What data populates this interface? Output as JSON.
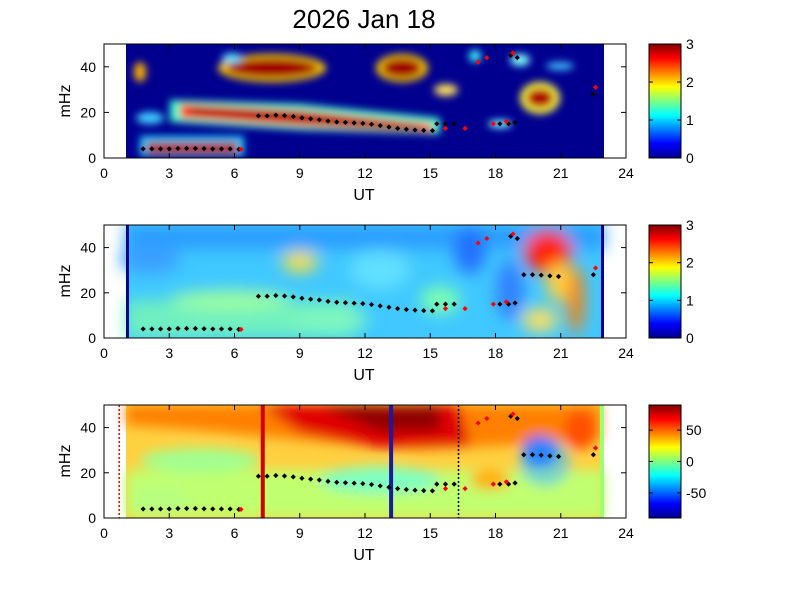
{
  "title": "2026 Jan 18",
  "colors": {
    "background_panel1": "#00008f",
    "marker_black": "#000000",
    "marker_red": "#ff0000",
    "line_red": "#d40000",
    "line_blue": "#1a1aa0"
  },
  "chart_data": [
    {
      "type": "heatmap",
      "panel": 1,
      "xlabel": "UT",
      "ylabel": "mHz",
      "xlim": [
        0,
        24
      ],
      "ylim": [
        0,
        50
      ],
      "xticks": [
        "0",
        "3",
        "6",
        "9",
        "12",
        "15",
        "18",
        "21",
        "24"
      ],
      "yticks": [
        "0",
        "20",
        "40"
      ],
      "data_x_range": [
        1,
        23
      ],
      "colorbar": {
        "range": [
          0,
          3
        ],
        "ticks": [
          "0",
          "1",
          "2",
          "3"
        ]
      },
      "black_markers": [
        [
          1.8,
          4
        ],
        [
          2.2,
          4
        ],
        [
          2.6,
          4
        ],
        [
          3.0,
          4
        ],
        [
          3.4,
          4.2
        ],
        [
          3.8,
          4.2
        ],
        [
          4.2,
          4.2
        ],
        [
          4.6,
          4.1
        ],
        [
          5.0,
          4
        ],
        [
          5.4,
          4
        ],
        [
          5.8,
          4
        ],
        [
          6.2,
          3.8
        ],
        [
          7.1,
          18.5
        ],
        [
          7.5,
          18.5
        ],
        [
          7.9,
          18.8
        ],
        [
          8.3,
          18.6
        ],
        [
          8.7,
          18.2
        ],
        [
          9.1,
          17.6
        ],
        [
          9.5,
          17.2
        ],
        [
          9.9,
          16.8
        ],
        [
          10.3,
          16.2
        ],
        [
          10.7,
          15.8
        ],
        [
          11.1,
          15.6
        ],
        [
          11.5,
          15.4
        ],
        [
          11.9,
          15.2
        ],
        [
          12.3,
          14.8
        ],
        [
          12.7,
          14.2
        ],
        [
          13.1,
          13.6
        ],
        [
          13.5,
          13
        ],
        [
          13.9,
          12.6
        ],
        [
          14.3,
          12.3
        ],
        [
          14.7,
          12.1
        ],
        [
          15.1,
          12
        ],
        [
          15.3,
          15
        ],
        [
          15.7,
          15
        ],
        [
          16.1,
          15
        ],
        [
          18.2,
          15
        ],
        [
          18.6,
          15
        ],
        [
          18.9,
          15.5
        ],
        [
          18.7,
          45
        ],
        [
          19.0,
          44
        ],
        [
          22.5,
          28
        ]
      ],
      "red_markers": [
        [
          6.3,
          3.8
        ],
        [
          15.7,
          13
        ],
        [
          16.6,
          13
        ],
        [
          17.2,
          42
        ],
        [
          17.6,
          44
        ],
        [
          17.9,
          15
        ],
        [
          18.5,
          16
        ],
        [
          18.8,
          46
        ],
        [
          22.6,
          31
        ]
      ]
    },
    {
      "type": "heatmap",
      "panel": 2,
      "xlabel": "UT",
      "ylabel": "mHz",
      "xlim": [
        0,
        24
      ],
      "ylim": [
        0,
        50
      ],
      "xticks": [
        "0",
        "3",
        "6",
        "9",
        "12",
        "15",
        "18",
        "21",
        "24"
      ],
      "yticks": [
        "0",
        "20",
        "40"
      ],
      "data_x_range": [
        1,
        23
      ],
      "colorbar": {
        "range": [
          0,
          3
        ],
        "ticks": [
          "0",
          "1",
          "2",
          "3"
        ]
      },
      "black_markers": [
        [
          1.8,
          4
        ],
        [
          2.2,
          4
        ],
        [
          2.6,
          4
        ],
        [
          3.0,
          4
        ],
        [
          3.4,
          4.2
        ],
        [
          3.8,
          4.2
        ],
        [
          4.2,
          4.2
        ],
        [
          4.6,
          4.1
        ],
        [
          5.0,
          4
        ],
        [
          5.4,
          4
        ],
        [
          5.8,
          4
        ],
        [
          6.2,
          3.8
        ],
        [
          7.1,
          18.5
        ],
        [
          7.5,
          18.5
        ],
        [
          7.9,
          18.8
        ],
        [
          8.3,
          18.6
        ],
        [
          8.7,
          18.2
        ],
        [
          9.1,
          17.6
        ],
        [
          9.5,
          17.2
        ],
        [
          9.9,
          16.8
        ],
        [
          10.3,
          16.2
        ],
        [
          10.7,
          15.8
        ],
        [
          11.1,
          15.6
        ],
        [
          11.5,
          15.4
        ],
        [
          11.9,
          15.2
        ],
        [
          12.3,
          14.8
        ],
        [
          12.7,
          14.2
        ],
        [
          13.1,
          13.6
        ],
        [
          13.5,
          13
        ],
        [
          13.9,
          12.6
        ],
        [
          14.3,
          12.3
        ],
        [
          14.7,
          12.1
        ],
        [
          15.1,
          12
        ],
        [
          15.3,
          15
        ],
        [
          15.7,
          15
        ],
        [
          16.1,
          15
        ],
        [
          18.2,
          15
        ],
        [
          18.6,
          15
        ],
        [
          18.9,
          15.5
        ],
        [
          18.7,
          45
        ],
        [
          19.0,
          44
        ],
        [
          19.3,
          28
        ],
        [
          19.7,
          28
        ],
        [
          20.1,
          27.8
        ],
        [
          20.5,
          27.5
        ],
        [
          20.9,
          27.2
        ],
        [
          22.5,
          28
        ]
      ],
      "red_markers": [
        [
          6.3,
          3.8
        ],
        [
          15.7,
          13
        ],
        [
          16.6,
          13
        ],
        [
          17.2,
          42
        ],
        [
          17.6,
          44
        ],
        [
          17.9,
          15
        ],
        [
          18.5,
          16
        ],
        [
          18.8,
          46
        ],
        [
          22.6,
          31
        ]
      ]
    },
    {
      "type": "heatmap",
      "panel": 3,
      "xlabel": "UT",
      "ylabel": "mHz",
      "xlim": [
        0,
        24
      ],
      "ylim": [
        0,
        50
      ],
      "xticks": [
        "0",
        "3",
        "6",
        "9",
        "12",
        "15",
        "18",
        "21",
        "24"
      ],
      "yticks": [
        "0",
        "20",
        "40"
      ],
      "data_x_range": [
        1,
        23
      ],
      "colorbar": {
        "range": [
          -90,
          90
        ],
        "ticks": [
          "50",
          "0",
          "-50"
        ],
        "tick_values": [
          50,
          0,
          -50
        ]
      },
      "vertical_lines": [
        {
          "x": 7.3,
          "style": "solid",
          "color": "#d40000"
        },
        {
          "x": 13.2,
          "style": "solid",
          "color": "#1a1aa0"
        },
        {
          "x": 0.7,
          "style": "dotted",
          "color": "#ff0000"
        },
        {
          "x": 16.3,
          "style": "dotted",
          "color": "#000000"
        }
      ],
      "black_markers": [
        [
          1.8,
          4
        ],
        [
          2.2,
          4
        ],
        [
          2.6,
          4
        ],
        [
          3.0,
          4
        ],
        [
          3.4,
          4.2
        ],
        [
          3.8,
          4.2
        ],
        [
          4.2,
          4.2
        ],
        [
          4.6,
          4.1
        ],
        [
          5.0,
          4
        ],
        [
          5.4,
          4
        ],
        [
          5.8,
          4
        ],
        [
          6.2,
          3.8
        ],
        [
          7.1,
          18.5
        ],
        [
          7.5,
          18.5
        ],
        [
          7.9,
          18.8
        ],
        [
          8.3,
          18.6
        ],
        [
          8.7,
          18.2
        ],
        [
          9.1,
          17.6
        ],
        [
          9.5,
          17.2
        ],
        [
          9.9,
          16.8
        ],
        [
          10.3,
          16.2
        ],
        [
          10.7,
          15.8
        ],
        [
          11.1,
          15.6
        ],
        [
          11.5,
          15.4
        ],
        [
          11.9,
          15.2
        ],
        [
          12.3,
          14.8
        ],
        [
          12.7,
          14.2
        ],
        [
          13.1,
          13.6
        ],
        [
          13.5,
          13
        ],
        [
          13.9,
          12.6
        ],
        [
          14.3,
          12.3
        ],
        [
          14.7,
          12.1
        ],
        [
          15.1,
          12
        ],
        [
          15.3,
          15
        ],
        [
          15.7,
          15
        ],
        [
          16.1,
          15
        ],
        [
          18.2,
          15
        ],
        [
          18.6,
          15
        ],
        [
          18.9,
          15.5
        ],
        [
          18.7,
          45
        ],
        [
          19.0,
          44
        ],
        [
          19.3,
          28
        ],
        [
          19.7,
          28
        ],
        [
          20.1,
          27.8
        ],
        [
          20.5,
          27.5
        ],
        [
          20.9,
          27.2
        ],
        [
          22.5,
          28
        ]
      ],
      "red_markers": [
        [
          6.3,
          3.8
        ],
        [
          15.7,
          13
        ],
        [
          16.6,
          13
        ],
        [
          17.2,
          42
        ],
        [
          17.6,
          44
        ],
        [
          17.9,
          15
        ],
        [
          18.5,
          16
        ],
        [
          18.8,
          46
        ],
        [
          22.6,
          31
        ]
      ]
    }
  ]
}
